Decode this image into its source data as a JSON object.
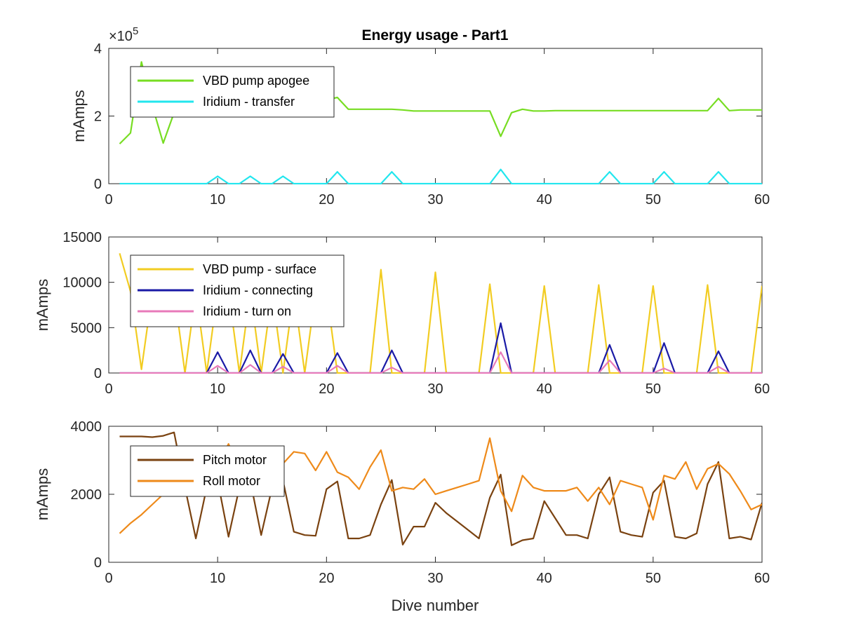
{
  "chart_data": {
    "title": "Energy usage - Part1",
    "xlabel": "Dive number",
    "xlim": [
      0,
      60
    ],
    "xticks": [
      0,
      10,
      20,
      30,
      40,
      50,
      60
    ],
    "grid": false,
    "subplots": [
      {
        "type": "line",
        "ylabel": "mAmps",
        "ylim": [
          0,
          400000
        ],
        "yticks": [
          0,
          200000,
          400000
        ],
        "ytick_labels": [
          "0",
          "2",
          "4"
        ],
        "exponent_label": "×10",
        "exponent_power": "5",
        "legend_position": "top-left",
        "series": [
          {
            "name": "VBD pump apogee",
            "color": "#77dd22",
            "x": [
              1,
              2,
              3,
              4,
              5,
              6,
              7,
              8,
              9,
              10,
              11,
              12,
              13,
              14,
              15,
              16,
              17,
              18,
              19,
              20,
              21,
              22,
              23,
              24,
              25,
              26,
              27,
              28,
              29,
              30,
              31,
              32,
              33,
              34,
              35,
              36,
              37,
              38,
              39,
              40,
              41,
              42,
              43,
              44,
              45,
              46,
              47,
              48,
              49,
              50,
              51,
              52,
              53,
              54,
              55,
              56,
              57,
              58,
              59,
              60
            ],
            "y": [
              118000,
              150000,
              360000,
              230000,
              120000,
              210000,
              235000,
              240000,
              240000,
              240000,
              240000,
              240000,
              240000,
              240000,
              240000,
              240000,
              240000,
              240000,
              245000,
              248000,
              255000,
              220000,
              220000,
              220000,
              220000,
              220000,
              218000,
              215000,
              215000,
              215000,
              215000,
              215000,
              215000,
              215000,
              215000,
              140000,
              210000,
              220000,
              215000,
              215000,
              216000,
              216000,
              216000,
              216000,
              216000,
              216000,
              216000,
              216000,
              216000,
              216000,
              216000,
              216000,
              216000,
              216000,
              216000,
              252000,
              216000,
              218000,
              218000,
              218000
            ]
          },
          {
            "name": "Iridium - transfer",
            "color": "#22e6ee",
            "x": [
              1,
              2,
              3,
              4,
              5,
              6,
              7,
              8,
              9,
              10,
              11,
              12,
              13,
              14,
              15,
              16,
              17,
              18,
              19,
              20,
              21,
              22,
              23,
              24,
              25,
              26,
              27,
              28,
              29,
              30,
              31,
              32,
              33,
              34,
              35,
              36,
              37,
              38,
              39,
              40,
              41,
              42,
              43,
              44,
              45,
              46,
              47,
              48,
              49,
              50,
              51,
              52,
              53,
              54,
              55,
              56,
              57,
              58,
              59,
              60
            ],
            "y": [
              0,
              0,
              0,
              0,
              0,
              0,
              0,
              0,
              0,
              22000,
              0,
              0,
              22000,
              0,
              0,
              22000,
              0,
              0,
              0,
              0,
              35000,
              0,
              0,
              0,
              0,
              35000,
              0,
              0,
              0,
              0,
              0,
              0,
              0,
              0,
              0,
              42000,
              0,
              0,
              0,
              0,
              0,
              0,
              0,
              0,
              0,
              35000,
              0,
              0,
              0,
              0,
              35000,
              0,
              0,
              0,
              0,
              35000,
              0,
              0,
              0,
              0
            ]
          }
        ]
      },
      {
        "type": "line",
        "ylabel": "mAmps",
        "ylim": [
          0,
          15000
        ],
        "yticks": [
          0,
          5000,
          10000,
          15000
        ],
        "ytick_labels": [
          "0",
          "5000",
          "10000",
          "15000"
        ],
        "legend_position": "top-left",
        "series": [
          {
            "name": "VBD pump - surface",
            "color": "#f2cc22",
            "x": [
              1,
              2,
              3,
              4,
              5,
              6,
              7,
              8,
              9,
              10,
              11,
              12,
              13,
              14,
              15,
              16,
              17,
              18,
              19,
              20,
              21,
              22,
              23,
              24,
              25,
              26,
              27,
              28,
              29,
              30,
              31,
              32,
              33,
              34,
              35,
              36,
              37,
              38,
              39,
              40,
              41,
              42,
              43,
              44,
              45,
              46,
              47,
              48,
              49,
              50,
              51,
              52,
              53,
              54,
              55,
              56,
              57,
              58,
              59,
              60
            ],
            "y": [
              13200,
              9000,
              400,
              9000,
              9000,
              9000,
              0,
              9000,
              0,
              9000,
              9000,
              0,
              9000,
              0,
              9000,
              0,
              9000,
              0,
              9000,
              9000,
              0,
              0,
              0,
              0,
              11400,
              0,
              0,
              0,
              0,
              11100,
              0,
              0,
              0,
              0,
              9800,
              0,
              0,
              0,
              0,
              9600,
              0,
              0,
              0,
              0,
              9700,
              0,
              0,
              0,
              0,
              9600,
              0,
              0,
              0,
              0,
              9700,
              0,
              0,
              0,
              0,
              9600
            ]
          },
          {
            "name": "Iridium - connecting",
            "color": "#1a1aa6",
            "x": [
              1,
              2,
              3,
              4,
              5,
              6,
              7,
              8,
              9,
              10,
              11,
              12,
              13,
              14,
              15,
              16,
              17,
              18,
              19,
              20,
              21,
              22,
              23,
              24,
              25,
              26,
              27,
              28,
              29,
              30,
              31,
              32,
              33,
              34,
              35,
              36,
              37,
              38,
              39,
              40,
              41,
              42,
              43,
              44,
              45,
              46,
              47,
              48,
              49,
              50,
              51,
              52,
              53,
              54,
              55,
              56,
              57,
              58,
              59,
              60
            ],
            "y": [
              0,
              0,
              0,
              0,
              0,
              0,
              0,
              0,
              0,
              2300,
              0,
              0,
              2500,
              0,
              0,
              2100,
              0,
              0,
              0,
              0,
              2200,
              0,
              0,
              0,
              0,
              2500,
              0,
              0,
              0,
              0,
              0,
              0,
              0,
              0,
              0,
              5500,
              0,
              0,
              0,
              0,
              0,
              0,
              0,
              0,
              0,
              3100,
              0,
              0,
              0,
              0,
              3300,
              0,
              0,
              0,
              0,
              2400,
              0,
              0,
              0,
              0
            ]
          },
          {
            "name": "Iridium - turn on",
            "color": "#e87aba",
            "x": [
              1,
              2,
              3,
              4,
              5,
              6,
              7,
              8,
              9,
              10,
              11,
              12,
              13,
              14,
              15,
              16,
              17,
              18,
              19,
              20,
              21,
              22,
              23,
              24,
              25,
              26,
              27,
              28,
              29,
              30,
              31,
              32,
              33,
              34,
              35,
              36,
              37,
              38,
              39,
              40,
              41,
              42,
              43,
              44,
              45,
              46,
              47,
              48,
              49,
              50,
              51,
              52,
              53,
              54,
              55,
              56,
              57,
              58,
              59,
              60
            ],
            "y": [
              0,
              0,
              0,
              0,
              0,
              0,
              0,
              0,
              0,
              800,
              0,
              0,
              900,
              0,
              0,
              700,
              0,
              0,
              0,
              0,
              800,
              0,
              0,
              0,
              0,
              600,
              0,
              0,
              0,
              0,
              0,
              0,
              0,
              0,
              0,
              2300,
              0,
              0,
              0,
              0,
              0,
              0,
              0,
              0,
              0,
              1400,
              0,
              0,
              0,
              0,
              500,
              0,
              0,
              0,
              0,
              700,
              0,
              0,
              0,
              0
            ]
          }
        ]
      },
      {
        "type": "line",
        "ylabel": "mAmps",
        "ylim": [
          0,
          4000
        ],
        "yticks": [
          0,
          2000,
          4000
        ],
        "ytick_labels": [
          "0",
          "2000",
          "4000"
        ],
        "legend_position": "top-left",
        "series": [
          {
            "name": "Pitch motor",
            "color": "#7a4210",
            "x": [
              1,
              2,
              3,
              4,
              5,
              6,
              7,
              8,
              9,
              10,
              11,
              12,
              13,
              14,
              15,
              16,
              17,
              18,
              19,
              20,
              21,
              22,
              23,
              24,
              25,
              26,
              27,
              28,
              29,
              30,
              31,
              32,
              33,
              34,
              35,
              36,
              37,
              38,
              39,
              40,
              41,
              42,
              43,
              44,
              45,
              46,
              47,
              48,
              49,
              50,
              51,
              52,
              53,
              54,
              55,
              56,
              57,
              58,
              59,
              60
            ],
            "y": [
              3700,
              3700,
              3700,
              3680,
              3720,
              3820,
              2200,
              700,
              2200,
              2400,
              750,
              2200,
              2400,
              800,
              2200,
              2400,
              900,
              800,
              780,
              2150,
              2380,
              700,
              700,
              800,
              1700,
              2420,
              520,
              1050,
              1050,
              1750,
              1450,
              1200,
              950,
              700,
              1900,
              2580,
              500,
              650,
              700,
              1800,
              1300,
              800,
              800,
              700,
              2000,
              2500,
              900,
              800,
              750,
              2050,
              2400,
              750,
              700,
              850,
              2300,
              2950,
              700,
              750,
              670,
              1750
            ]
          },
          {
            "name": "Roll motor",
            "color": "#ee8a1a",
            "x": [
              1,
              2,
              3,
              4,
              5,
              6,
              7,
              8,
              9,
              10,
              11,
              12,
              13,
              14,
              15,
              16,
              17,
              18,
              19,
              20,
              21,
              22,
              23,
              24,
              25,
              26,
              27,
              28,
              29,
              30,
              31,
              32,
              33,
              34,
              35,
              36,
              37,
              38,
              39,
              40,
              41,
              42,
              43,
              44,
              45,
              46,
              47,
              48,
              49,
              50,
              51,
              52,
              53,
              54,
              55,
              56,
              57,
              58,
              59,
              60
            ],
            "y": [
              850,
              1150,
              1400,
              1700,
              2000,
              2400,
              2600,
              2700,
              2800,
              2900,
              3480,
              2800,
              2700,
              2750,
              2800,
              2900,
              3250,
              3200,
              2700,
              3250,
              2650,
              2500,
              2150,
              2800,
              3300,
              2100,
              2200,
              2150,
              2450,
              2000,
              2100,
              2200,
              2300,
              2400,
              3650,
              2100,
              1500,
              2550,
              2200,
              2100,
              2100,
              2100,
              2200,
              1800,
              2200,
              1700,
              2400,
              2300,
              2200,
              1250,
              2550,
              2450,
              2950,
              2150,
              2750,
              2900,
              2600,
              2100,
              1550,
              1700
            ]
          }
        ]
      }
    ]
  }
}
